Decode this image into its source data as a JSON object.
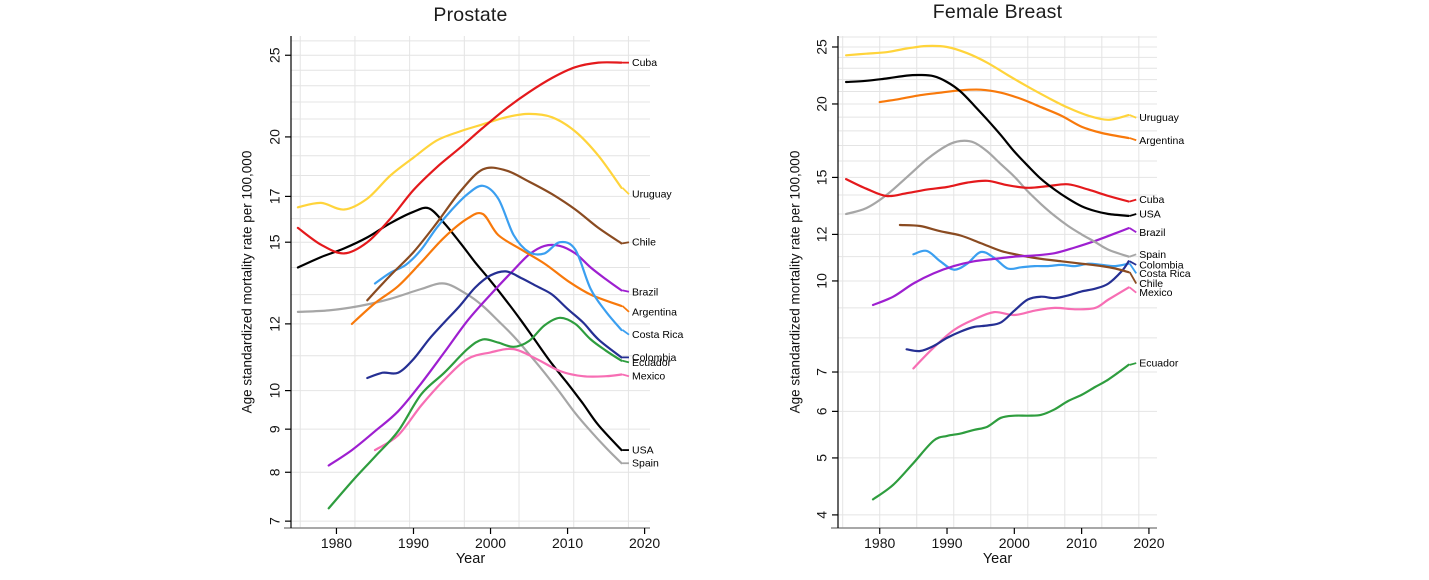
{
  "figure": {
    "background": "#ffffff",
    "grid_color": "#e4e4e4",
    "axis_color": "#8c8c8c",
    "tick_color": "#000000"
  },
  "chart_data": [
    {
      "type": "line",
      "title": "Prostate",
      "xlabel": "Year",
      "ylabel": "Age standardized mortality rate per 100,000",
      "yscale": "log",
      "grid": true,
      "legend_position": "right-of-line-ends",
      "xlim": [
        1974.1,
        2020.7
      ],
      "ylim": [
        6.87,
        26.35
      ],
      "xticks": [
        1980,
        1990,
        2000,
        2010,
        2020
      ],
      "yticks": [
        7,
        8,
        9,
        10,
        12,
        15,
        17,
        20,
        25
      ],
      "grid_x": [
        1975.3,
        1982.4,
        1989.5,
        1996.6,
        2003.7,
        2010.8,
        2017.9
      ],
      "series": [
        {
          "name": "Spain",
          "color": "#a6a6a6",
          "label_value": 8.2,
          "x": [
            1975,
            1979,
            1983,
            1987,
            1991,
            1994,
            1997,
            1999,
            2001,
            2003,
            2005,
            2007,
            2009,
            2011,
            2013,
            2015,
            2017
          ],
          "y": [
            12.4,
            12.45,
            12.6,
            12.85,
            13.2,
            13.4,
            13.0,
            12.6,
            12.1,
            11.6,
            11.05,
            10.5,
            9.95,
            9.4,
            8.95,
            8.55,
            8.2
          ]
        },
        {
          "name": "USA",
          "color": "#000000",
          "label_value": 8.5,
          "x": [
            1975,
            1978,
            1981,
            1984,
            1987,
            1990,
            1992,
            1994,
            1996,
            1998,
            2000,
            2002,
            2004,
            2006,
            2008,
            2010,
            2012,
            2014,
            2017
          ],
          "y": [
            14.0,
            14.4,
            14.75,
            15.2,
            15.8,
            16.3,
            16.45,
            15.8,
            15.0,
            14.2,
            13.5,
            12.8,
            12.1,
            11.4,
            10.75,
            10.2,
            9.65,
            9.1,
            8.5
          ]
        },
        {
          "name": "Mexico",
          "color": "#f76eb4",
          "label_value": 10.4,
          "x": [
            1985,
            1988,
            1991,
            1994,
            1997,
            2000,
            2003,
            2006,
            2009,
            2012,
            2015,
            2017
          ],
          "y": [
            8.5,
            8.85,
            9.6,
            10.3,
            10.9,
            11.1,
            11.2,
            10.9,
            10.55,
            10.4,
            10.4,
            10.45
          ]
        },
        {
          "name": "Ecuador",
          "color": "#2e9d3e",
          "label_value": 10.8,
          "x": [
            1979,
            1982,
            1985,
            1988,
            1991,
            1994,
            1997,
            1999,
            2001,
            2003,
            2005,
            2007,
            2009,
            2011,
            2013,
            2015,
            2017
          ],
          "y": [
            7.25,
            7.8,
            8.35,
            8.95,
            9.9,
            10.5,
            11.2,
            11.5,
            11.4,
            11.27,
            11.45,
            11.95,
            12.2,
            12.0,
            11.5,
            11.15,
            10.85
          ]
        },
        {
          "name": "Brazil",
          "color": "#9e1fd0",
          "label_value": 13.1,
          "x": [
            1979,
            1982,
            1985,
            1988,
            1991,
            1994,
            1997,
            2000,
            2003,
            2005,
            2007,
            2009,
            2011,
            2013,
            2015,
            2017
          ],
          "y": [
            8.15,
            8.5,
            8.95,
            9.45,
            10.2,
            11.1,
            12.1,
            13.0,
            13.9,
            14.5,
            14.85,
            14.85,
            14.55,
            14.0,
            13.55,
            13.15
          ]
        },
        {
          "name": "Colombia",
          "color": "#252f93",
          "label_value": 10.95,
          "x": [
            1984,
            1986,
            1988,
            1990,
            1992,
            1994,
            1996,
            1998,
            2000,
            2002,
            2004,
            2006,
            2008,
            2010,
            2012,
            2014,
            2017
          ],
          "y": [
            10.35,
            10.5,
            10.5,
            10.9,
            11.5,
            12.05,
            12.6,
            13.25,
            13.7,
            13.85,
            13.6,
            13.3,
            13.0,
            12.5,
            12.05,
            11.5,
            10.95
          ]
        },
        {
          "name": "Argentina",
          "color": "#f8790b",
          "label_value": 12.4,
          "x": [
            1982,
            1985,
            1988,
            1991,
            1994,
            1997,
            1999,
            2001,
            2004,
            2007,
            2010,
            2013,
            2017
          ],
          "y": [
            12.0,
            12.7,
            13.3,
            14.2,
            15.2,
            16.0,
            16.2,
            15.3,
            14.7,
            14.15,
            13.5,
            13.0,
            12.6
          ]
        },
        {
          "name": "Costa Rica",
          "color": "#3b9ff0",
          "label_value": 11.65,
          "x": [
            1985,
            1987,
            1989,
            1991,
            1993,
            1995,
            1997,
            1999,
            2001,
            2003,
            2005,
            2007,
            2009,
            2011,
            2013,
            2015,
            2017
          ],
          "y": [
            13.4,
            13.8,
            14.1,
            14.7,
            15.6,
            16.4,
            17.1,
            17.5,
            16.9,
            15.3,
            14.6,
            14.55,
            15.0,
            14.7,
            13.2,
            12.4,
            11.8
          ]
        },
        {
          "name": "Chile",
          "color": "#8a4b21",
          "label_value": 15.0,
          "x": [
            1984,
            1987,
            1990,
            1993,
            1996,
            1999,
            2002,
            2005,
            2008,
            2011,
            2014,
            2017
          ],
          "y": [
            12.8,
            13.7,
            14.6,
            15.8,
            17.2,
            18.3,
            18.25,
            17.7,
            17.1,
            16.4,
            15.6,
            14.95
          ]
        },
        {
          "name": "Uruguay",
          "color": "#ffd43b",
          "label_value": 17.1,
          "x": [
            1975,
            1978,
            1981,
            1984,
            1987,
            1990,
            1993,
            1996,
            1999,
            2002,
            2005,
            2008,
            2011,
            2014,
            2017
          ],
          "y": [
            16.5,
            16.7,
            16.4,
            16.9,
            18.0,
            18.9,
            19.8,
            20.3,
            20.7,
            21.1,
            21.3,
            21.1,
            20.3,
            19.0,
            17.4
          ]
        },
        {
          "name": "Cuba",
          "color": "#e4191c",
          "label_value": 24.5,
          "x": [
            1975,
            1978,
            1981,
            1984,
            1987,
            1990,
            1993,
            1996,
            1999,
            2002,
            2005,
            2008,
            2011,
            2014,
            2017
          ],
          "y": [
            15.6,
            14.9,
            14.55,
            15.0,
            16.0,
            17.3,
            18.4,
            19.4,
            20.5,
            21.6,
            22.6,
            23.5,
            24.2,
            24.5,
            24.5
          ]
        }
      ]
    },
    {
      "type": "line",
      "title": "Female Breast",
      "xlabel": "Year",
      "ylabel": "Age standardized mortality rate per 100,000",
      "yscale": "log",
      "grid": true,
      "legend_position": "right-of-line-ends",
      "xlim": [
        1973.8,
        2021.2
      ],
      "ylim": [
        3.8,
        26.1
      ],
      "xticks": [
        1980,
        1990,
        2000,
        2010,
        2020
      ],
      "yticks": [
        4,
        5,
        6,
        7,
        10,
        12,
        15,
        20,
        25
      ],
      "grid_x": [
        1974.5,
        1980,
        1985.5,
        1991,
        1996.5,
        2002,
        2007.5,
        2013,
        2018.5
      ],
      "series": [
        {
          "name": "Ecuador",
          "color": "#2e9d3e",
          "label_value": 7.25,
          "x": [
            1979,
            1982,
            1985,
            1988,
            1990,
            1992,
            1994,
            1996,
            1998,
            2000,
            2002,
            2004,
            2006,
            2008,
            2010,
            2012,
            2014,
            2017
          ],
          "y": [
            4.25,
            4.5,
            4.9,
            5.35,
            5.45,
            5.5,
            5.58,
            5.65,
            5.85,
            5.9,
            5.9,
            5.92,
            6.05,
            6.25,
            6.4,
            6.6,
            6.8,
            7.2
          ]
        },
        {
          "name": "Mexico",
          "color": "#f76eb4",
          "label_value": 9.55,
          "x": [
            1985,
            1988,
            1991,
            1994,
            1997,
            2000,
            2003,
            2006,
            2009,
            2012,
            2014,
            2017
          ],
          "y": [
            7.1,
            7.7,
            8.25,
            8.6,
            8.85,
            8.75,
            8.9,
            9.0,
            8.95,
            9.0,
            9.3,
            9.75
          ]
        },
        {
          "name": "Costa Rica",
          "color": "#3b9ff0",
          "label_value": 10.3,
          "x": [
            1985,
            1987,
            1989,
            1991,
            1993,
            1995,
            1997,
            1999,
            2001,
            2003,
            2005,
            2007,
            2009,
            2011,
            2013,
            2015,
            2017
          ],
          "y": [
            11.1,
            11.25,
            10.8,
            10.45,
            10.7,
            11.2,
            10.95,
            10.5,
            10.55,
            10.6,
            10.6,
            10.65,
            10.6,
            10.7,
            10.65,
            10.6,
            10.7
          ]
        },
        {
          "name": "Colombia",
          "color": "#252f93",
          "label_value": 10.65,
          "x": [
            1984,
            1986,
            1988,
            1990,
            1992,
            1994,
            1996,
            1998,
            2000,
            2002,
            2004,
            2006,
            2008,
            2010,
            2012,
            2014,
            2016,
            2017
          ],
          "y": [
            7.65,
            7.6,
            7.75,
            8.0,
            8.2,
            8.35,
            8.4,
            8.5,
            8.9,
            9.3,
            9.4,
            9.35,
            9.45,
            9.6,
            9.7,
            9.9,
            10.4,
            10.8
          ]
        },
        {
          "name": "Chile",
          "color": "#8a4b21",
          "label_value": 9.9,
          "x": [
            1983,
            1986,
            1989,
            1992,
            1995,
            1998,
            2001,
            2004,
            2007,
            2010,
            2013,
            2015,
            2017
          ],
          "y": [
            12.45,
            12.4,
            12.15,
            11.95,
            11.6,
            11.25,
            11.05,
            10.9,
            10.8,
            10.7,
            10.6,
            10.5,
            10.35
          ]
        },
        {
          "name": "Brazil",
          "color": "#9e1fd0",
          "label_value": 12.1,
          "x": [
            1979,
            1982,
            1985,
            1988,
            1991,
            1994,
            1997,
            2000,
            2003,
            2006,
            2009,
            2012,
            2015,
            2017
          ],
          "y": [
            9.1,
            9.4,
            9.9,
            10.3,
            10.6,
            10.8,
            10.9,
            11.0,
            11.05,
            11.15,
            11.4,
            11.7,
            12.05,
            12.3
          ]
        },
        {
          "name": "Spain",
          "color": "#a6a6a6",
          "label_value": 11.1,
          "x": [
            1975,
            1978,
            1981,
            1984,
            1987,
            1990,
            1992,
            1994,
            1996,
            1998,
            2000,
            2002,
            2004,
            2006,
            2008,
            2010,
            2012,
            2014,
            2017
          ],
          "y": [
            13.0,
            13.3,
            14.0,
            15.0,
            16.1,
            17.0,
            17.3,
            17.2,
            16.6,
            15.8,
            15.05,
            14.2,
            13.5,
            12.9,
            12.4,
            12.0,
            11.65,
            11.3,
            11.0
          ]
        },
        {
          "name": "Cuba",
          "color": "#e4191c",
          "label_value": 13.75,
          "x": [
            1975,
            1978,
            1981,
            1984,
            1987,
            1990,
            1993,
            1996,
            1999,
            2002,
            2005,
            2008,
            2011,
            2014,
            2017
          ],
          "y": [
            14.9,
            14.35,
            13.95,
            14.1,
            14.3,
            14.45,
            14.7,
            14.8,
            14.55,
            14.4,
            14.5,
            14.6,
            14.3,
            13.95,
            13.65
          ]
        },
        {
          "name": "Argentina",
          "color": "#f8790b",
          "label_value": 17.35,
          "x": [
            1980,
            1983,
            1986,
            1989,
            1992,
            1995,
            1998,
            2001,
            2004,
            2007,
            2010,
            2013,
            2017
          ],
          "y": [
            20.15,
            20.4,
            20.7,
            20.9,
            21.1,
            21.15,
            20.9,
            20.4,
            19.75,
            19.1,
            18.3,
            17.85,
            17.5
          ]
        },
        {
          "name": "USA",
          "color": "#000000",
          "label_value": 13.0,
          "x": [
            1975,
            1978,
            1981,
            1984,
            1986,
            1988,
            1990,
            1992,
            1994,
            1996,
            1998,
            2000,
            2002,
            2004,
            2006,
            2008,
            2010,
            2012,
            2014,
            2017
          ],
          "y": [
            21.8,
            21.9,
            22.1,
            22.35,
            22.4,
            22.3,
            21.8,
            21.0,
            19.9,
            18.8,
            17.7,
            16.6,
            15.7,
            14.9,
            14.3,
            13.8,
            13.4,
            13.15,
            13.0,
            12.9
          ]
        },
        {
          "name": "Uruguay",
          "color": "#ffd43b",
          "label_value": 18.95,
          "x": [
            1975,
            1978,
            1981,
            1984,
            1987,
            1990,
            1993,
            1996,
            1999,
            2002,
            2005,
            2008,
            2011,
            2014,
            2017
          ],
          "y": [
            24.2,
            24.35,
            24.5,
            24.85,
            25.1,
            25.0,
            24.4,
            23.5,
            22.4,
            21.4,
            20.5,
            19.7,
            19.1,
            18.8,
            19.15
          ]
        }
      ]
    }
  ]
}
